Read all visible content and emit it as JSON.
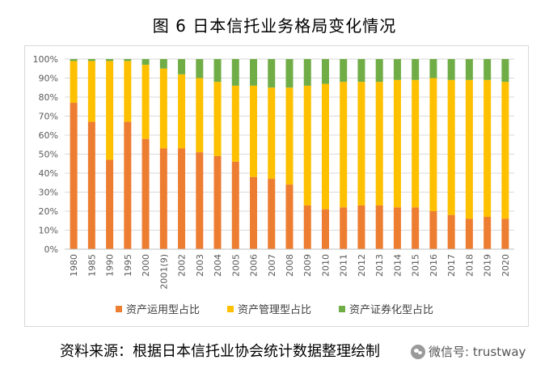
{
  "title": "图 6  日本信托业务格局变化情况",
  "source": "资料来源：根据日本信托业协会统计数据整理绘制",
  "watermark": "微信号: trustway",
  "colors": {
    "asset_use": "#ED7D31",
    "asset_mgmt": "#FFC000",
    "securitization": "#70AD47",
    "grid": "#d9d9d9",
    "axis_text": "#595959"
  },
  "chart_data": {
    "type": "bar",
    "stacked": true,
    "title": "图 6  日本信托业务格局变化情况",
    "xlabel": "",
    "ylabel": "",
    "ylim": [
      0,
      100
    ],
    "y_ticks": [
      "0%",
      "10%",
      "20%",
      "30%",
      "40%",
      "50%",
      "60%",
      "70%",
      "80%",
      "90%",
      "100%"
    ],
    "categories": [
      "1980",
      "1985",
      "1990",
      "1995",
      "2000",
      "2001(9)",
      "2002",
      "2003",
      "2004",
      "2005",
      "2006",
      "2007",
      "2008",
      "2009",
      "2010",
      "2011",
      "2012",
      "2013",
      "2014",
      "2015",
      "2016",
      "2017",
      "2018",
      "2019",
      "2020"
    ],
    "series": [
      {
        "name": "资产运用型占比",
        "color": "#ED7D31",
        "values": [
          77,
          67,
          47,
          67,
          58,
          53,
          53,
          51,
          49,
          46,
          38,
          37,
          34,
          23,
          21,
          22,
          23,
          23,
          22,
          22,
          20,
          18,
          16,
          17,
          16
        ]
      },
      {
        "name": "资产管理型占比",
        "color": "#FFC000",
        "values": [
          22,
          32,
          52,
          32,
          39,
          42,
          39,
          39,
          39,
          40,
          48,
          48,
          51,
          63,
          66,
          66,
          65,
          65,
          67,
          67,
          70,
          71,
          73,
          72,
          72
        ]
      },
      {
        "name": "资产证券化型占比",
        "color": "#70AD47",
        "values": [
          1,
          1,
          1,
          1,
          3,
          5,
          8,
          10,
          12,
          14,
          14,
          15,
          15,
          14,
          13,
          12,
          12,
          12,
          11,
          11,
          10,
          11,
          11,
          11,
          12
        ]
      }
    ],
    "legend_position": "bottom",
    "grid": true
  }
}
